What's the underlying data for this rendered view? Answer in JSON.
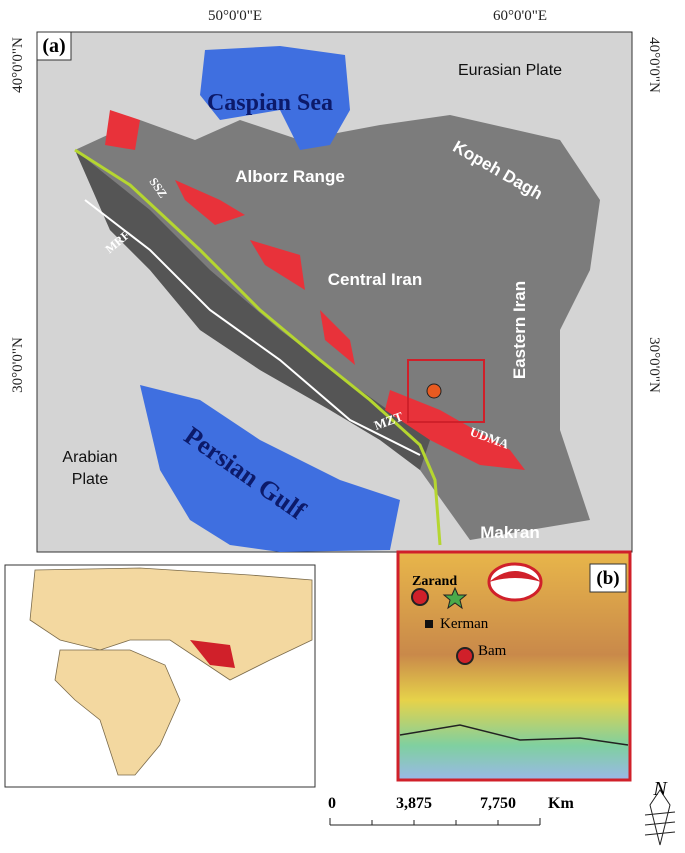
{
  "map": {
    "panel_label": "(a)",
    "lon_labels": [
      "50°0'0\"E",
      "60°0'0\"E"
    ],
    "lat_labels_left": [
      "40°0'0\"N",
      "30°0'0\"N"
    ],
    "lat_labels_right": [
      "40°0'0\"N",
      "30°0'0\"N"
    ],
    "features": {
      "eurasian_plate": "Eurasian Plate",
      "caspian_sea": "Caspian Sea",
      "alborz_range": "Alborz Range",
      "kopeh_dagh": "Kopeh Dagh",
      "ssz": "SSZ",
      "mrf": "MRF",
      "central_iran": "Central Iran",
      "eastern_iran": "Eastern Iran",
      "mzt": "MZT",
      "udma": "UDMA",
      "arabian_plate": [
        "Arabian",
        "Plate"
      ],
      "persian_gulf": "Persian Gulf",
      "makran": "Makran"
    }
  },
  "inset_b": {
    "panel_label": "(b)",
    "places": [
      "Zarand",
      "Kerman",
      "Bam"
    ]
  },
  "scale_bar": {
    "labels": [
      "0",
      "3,875",
      "7,750"
    ],
    "unit": "Km"
  },
  "north_arrow": {
    "label": "N"
  }
}
